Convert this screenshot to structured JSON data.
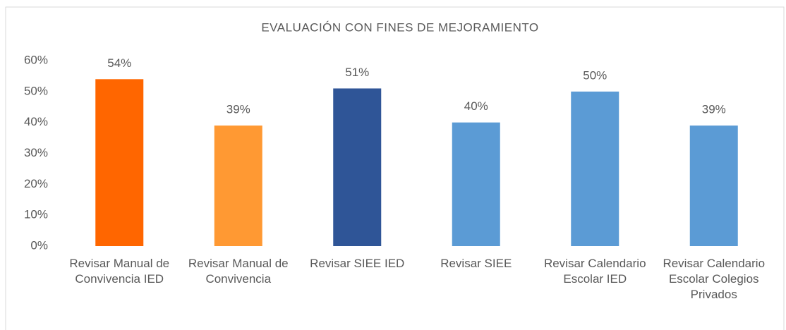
{
  "chart_data": {
    "type": "bar",
    "title": "EVALUACIÓN CON FINES DE MEJORAMIENTO",
    "categories": [
      "Revisar Manual de Convivencia IED",
      "Revisar Manual de Convivencia",
      "Revisar SIEE IED",
      "Revisar SIEE",
      "Revisar Calendario Escolar IED",
      "Revisar Calendario Escolar Colegios Privados"
    ],
    "values": [
      54,
      39,
      51,
      40,
      50,
      39
    ],
    "value_labels": [
      "54%",
      "39%",
      "51%",
      "40%",
      "50%",
      "39%"
    ],
    "colors": [
      "#ff6600",
      "#ff9933",
      "#2f5597",
      "#5b9bd5",
      "#5b9bd5",
      "#5b9bd5"
    ],
    "ylim": [
      0,
      60
    ],
    "yticks": [
      {
        "value": 0,
        "label": "0%"
      },
      {
        "value": 10,
        "label": "10%"
      },
      {
        "value": 20,
        "label": "20%"
      },
      {
        "value": 30,
        "label": "30%"
      },
      {
        "value": 40,
        "label": "40%"
      },
      {
        "value": 50,
        "label": "50%"
      },
      {
        "value": 60,
        "label": "60%"
      }
    ],
    "grid": false
  }
}
